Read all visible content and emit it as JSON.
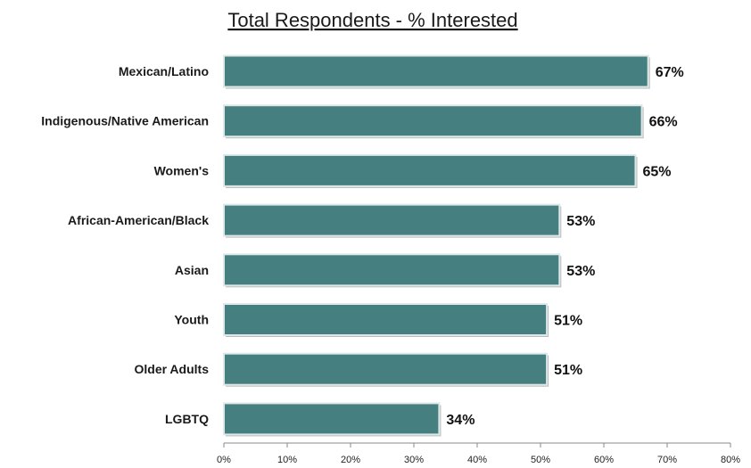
{
  "chart_data": {
    "type": "bar",
    "orientation": "horizontal",
    "title": "Total Respondents - % Interested",
    "categories": [
      "Mexican/Latino",
      "Indigenous/Native American",
      "Women's",
      "African-American/Black",
      "Asian",
      "Youth",
      "Older Adults",
      "LGBTQ"
    ],
    "values": [
      67,
      66,
      65,
      53,
      53,
      51,
      51,
      34
    ],
    "data_labels": [
      "67%",
      "66%",
      "65%",
      "53%",
      "53%",
      "51%",
      "51%",
      "34%"
    ],
    "xlim": [
      0,
      80
    ],
    "xticks": [
      "0%",
      "10%",
      "20%",
      "30%",
      "40%",
      "50%",
      "60%",
      "70%",
      "80%"
    ],
    "xlabel": "",
    "ylabel": "",
    "grid": false,
    "legend": "none",
    "bar_color": "#457f80",
    "bar_border_color": "#dfe8e8"
  }
}
